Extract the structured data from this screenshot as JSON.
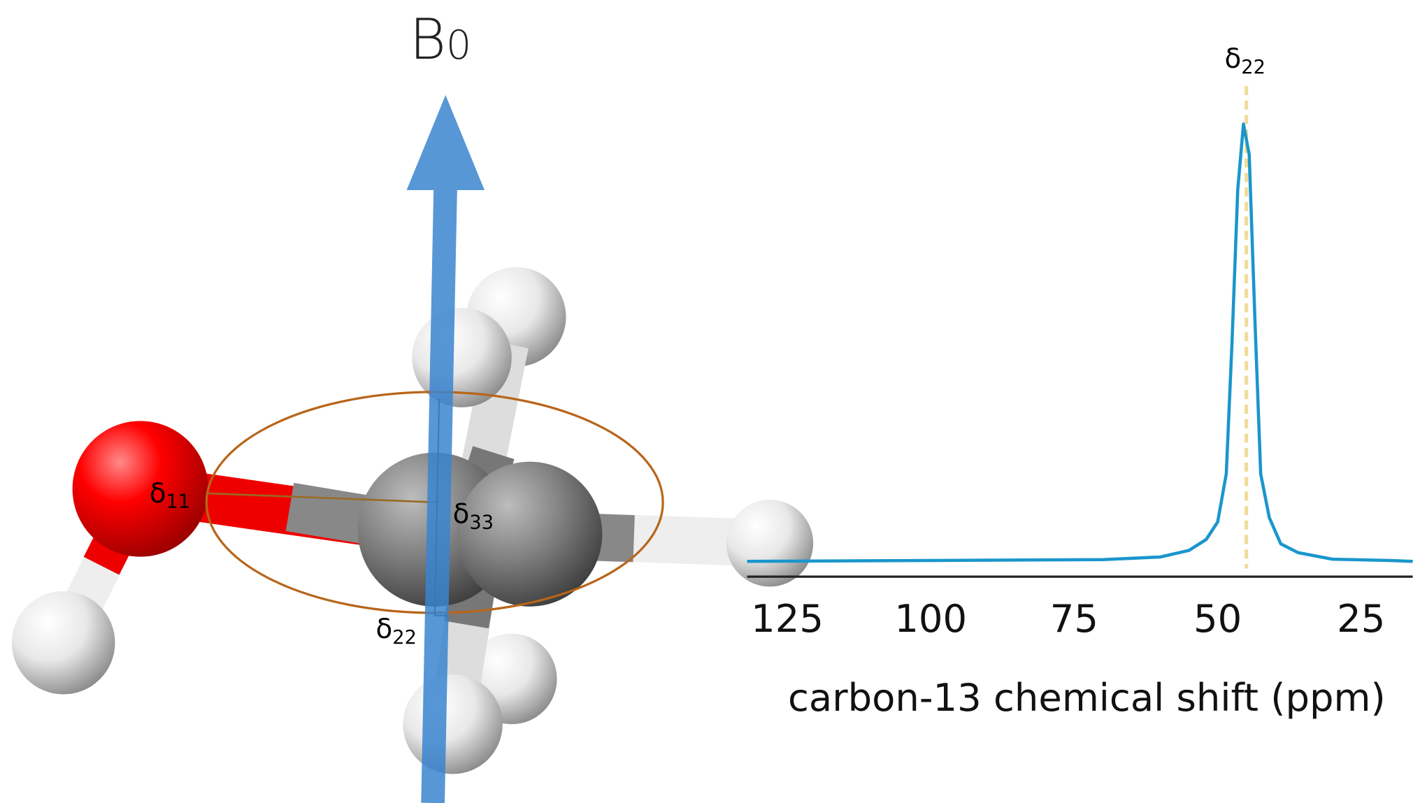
{
  "molecule_labels": {
    "field": {
      "base": "B",
      "sub": "0"
    },
    "d11": {
      "base": "δ",
      "sub": "11"
    },
    "d33": {
      "base": "δ",
      "sub": "33"
    },
    "d22": {
      "base": "δ",
      "sub": "22"
    }
  },
  "chart_data": {
    "type": "line",
    "x_label": "carbon-13 chemical shift (ppm)",
    "x": [
      132,
      100,
      70,
      60,
      55,
      52,
      50,
      48.5,
      47.5,
      46.5,
      45.5,
      44.5,
      43.5,
      42.5,
      41,
      39,
      36,
      30,
      20,
      16
    ],
    "series": [
      {
        "color": "#1a96cc",
        "values": [
          0,
          0.002,
          0.004,
          0.01,
          0.025,
          0.05,
          0.09,
          0.2,
          0.5,
          0.85,
          1.0,
          0.93,
          0.55,
          0.2,
          0.1,
          0.04,
          0.02,
          0.005,
          0.002,
          0
        ]
      }
    ],
    "xlim": [
      132,
      16
    ],
    "xticks": [
      125,
      100,
      75,
      50,
      25
    ],
    "ylim": [
      -0.035,
      1
    ],
    "annotations": [
      {
        "x": 45,
        "label": {
          "base": "δ",
          "sub": "22"
        },
        "color": "#f0dc9a"
      }
    ]
  }
}
